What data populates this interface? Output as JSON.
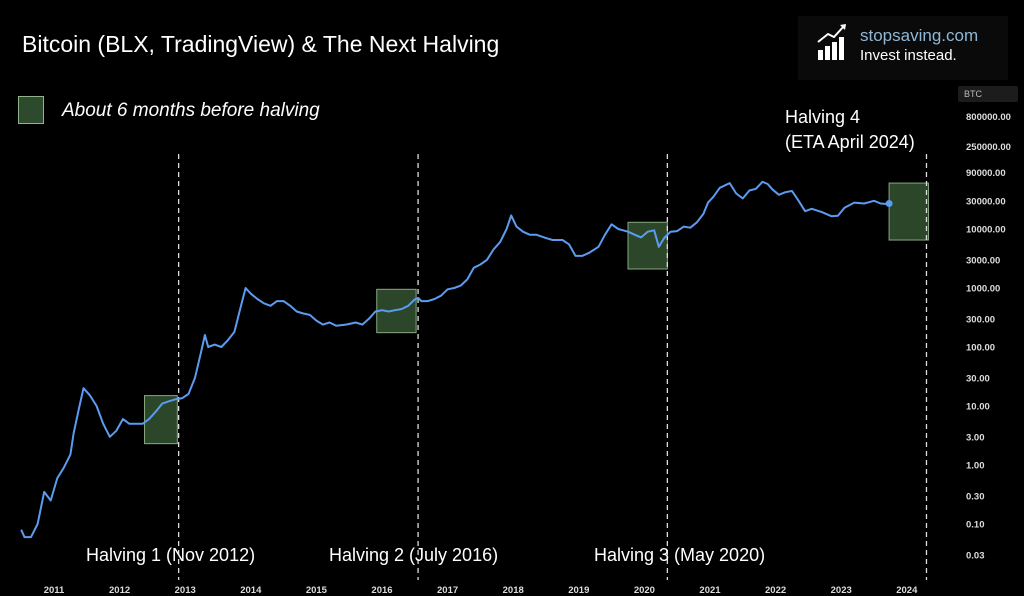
{
  "title": "Bitcoin (BLX, TradingView) & The Next Halving",
  "logo": {
    "brand": "stopsaving.com",
    "tagline": "Invest instead.",
    "icon": "bar-chart-arrow-icon"
  },
  "legend": {
    "label": "About 6 months before halving",
    "color": "#2e4a2c"
  },
  "colors": {
    "line": "#5b9cf0",
    "box_fill": "#2e4a2c",
    "box_stroke": "#8fb38a",
    "halving_line": "#dddddd"
  },
  "chart_data": {
    "type": "line",
    "title": "Bitcoin (BLX, TradingView) & The Next Halving",
    "xlabel": "",
    "ylabel": "BTC",
    "y_scale": "log",
    "y_ticks": [
      "800000.00",
      "250000.00",
      "90000.00",
      "30000.00",
      "10000.00",
      "3000.00",
      "1000.00",
      "300.00",
      "100.00",
      "30.00",
      "10.00",
      "3.00",
      "1.00",
      "0.30",
      "0.10",
      "0.03"
    ],
    "x_ticks": [
      "2011",
      "2012",
      "2013",
      "2014",
      "2015",
      "2016",
      "2017",
      "2018",
      "2019",
      "2020",
      "2021",
      "2022",
      "2023",
      "2024"
    ],
    "series": [
      {
        "name": "BTC",
        "points": [
          [
            2010.5,
            0.08
          ],
          [
            2010.55,
            0.06
          ],
          [
            2010.65,
            0.06
          ],
          [
            2010.75,
            0.1
          ],
          [
            2010.85,
            0.35
          ],
          [
            2010.95,
            0.25
          ],
          [
            2011.05,
            0.6
          ],
          [
            2011.15,
            0.9
          ],
          [
            2011.25,
            1.5
          ],
          [
            2011.3,
            3.5
          ],
          [
            2011.38,
            9
          ],
          [
            2011.45,
            20
          ],
          [
            2011.55,
            15
          ],
          [
            2011.65,
            10
          ],
          [
            2011.75,
            5
          ],
          [
            2011.85,
            3
          ],
          [
            2011.95,
            3.8
          ],
          [
            2012.05,
            6
          ],
          [
            2012.15,
            5
          ],
          [
            2012.25,
            5
          ],
          [
            2012.35,
            5
          ],
          [
            2012.45,
            6
          ],
          [
            2012.55,
            8
          ],
          [
            2012.65,
            11
          ],
          [
            2012.75,
            12
          ],
          [
            2012.85,
            13
          ],
          [
            2012.95,
            13.5
          ],
          [
            2013.05,
            16
          ],
          [
            2013.15,
            30
          ],
          [
            2013.25,
            90
          ],
          [
            2013.3,
            160
          ],
          [
            2013.35,
            100
          ],
          [
            2013.45,
            110
          ],
          [
            2013.55,
            100
          ],
          [
            2013.65,
            130
          ],
          [
            2013.75,
            180
          ],
          [
            2013.85,
            500
          ],
          [
            2013.92,
            1000
          ],
          [
            2014.0,
            800
          ],
          [
            2014.1,
            650
          ],
          [
            2014.2,
            550
          ],
          [
            2014.3,
            500
          ],
          [
            2014.4,
            600
          ],
          [
            2014.5,
            600
          ],
          [
            2014.6,
            500
          ],
          [
            2014.7,
            400
          ],
          [
            2014.8,
            370
          ],
          [
            2014.9,
            350
          ],
          [
            2015.0,
            280
          ],
          [
            2015.1,
            240
          ],
          [
            2015.2,
            260
          ],
          [
            2015.3,
            230
          ],
          [
            2015.45,
            240
          ],
          [
            2015.6,
            260
          ],
          [
            2015.7,
            240
          ],
          [
            2015.8,
            300
          ],
          [
            2015.9,
            400
          ],
          [
            2016.0,
            420
          ],
          [
            2016.1,
            400
          ],
          [
            2016.2,
            420
          ],
          [
            2016.3,
            440
          ],
          [
            2016.4,
            500
          ],
          [
            2016.5,
            640
          ],
          [
            2016.55,
            680
          ],
          [
            2016.6,
            600
          ],
          [
            2016.7,
            600
          ],
          [
            2016.8,
            650
          ],
          [
            2016.9,
            740
          ],
          [
            2017.0,
            950
          ],
          [
            2017.1,
            1000
          ],
          [
            2017.2,
            1100
          ],
          [
            2017.3,
            1400
          ],
          [
            2017.4,
            2200
          ],
          [
            2017.5,
            2500
          ],
          [
            2017.6,
            3000
          ],
          [
            2017.7,
            4500
          ],
          [
            2017.8,
            6000
          ],
          [
            2017.9,
            10000
          ],
          [
            2017.97,
            17000
          ],
          [
            2018.05,
            11000
          ],
          [
            2018.15,
            9000
          ],
          [
            2018.25,
            8000
          ],
          [
            2018.35,
            8000
          ],
          [
            2018.5,
            7000
          ],
          [
            2018.6,
            6500
          ],
          [
            2018.75,
            6500
          ],
          [
            2018.85,
            5500
          ],
          [
            2018.95,
            3500
          ],
          [
            2019.05,
            3500
          ],
          [
            2019.15,
            3900
          ],
          [
            2019.3,
            5000
          ],
          [
            2019.4,
            8000
          ],
          [
            2019.5,
            12000
          ],
          [
            2019.6,
            10000
          ],
          [
            2019.75,
            9000
          ],
          [
            2019.85,
            8000
          ],
          [
            2019.95,
            7200
          ],
          [
            2020.05,
            9000
          ],
          [
            2020.15,
            9500
          ],
          [
            2020.22,
            5000
          ],
          [
            2020.3,
            7000
          ],
          [
            2020.4,
            9000
          ],
          [
            2020.5,
            9200
          ],
          [
            2020.6,
            11000
          ],
          [
            2020.7,
            10500
          ],
          [
            2020.8,
            13000
          ],
          [
            2020.9,
            18000
          ],
          [
            2020.97,
            28000
          ],
          [
            2021.05,
            35000
          ],
          [
            2021.15,
            50000
          ],
          [
            2021.3,
            60000
          ],
          [
            2021.4,
            40000
          ],
          [
            2021.5,
            33000
          ],
          [
            2021.6,
            45000
          ],
          [
            2021.7,
            48000
          ],
          [
            2021.8,
            63000
          ],
          [
            2021.88,
            58000
          ],
          [
            2021.95,
            47000
          ],
          [
            2022.05,
            38000
          ],
          [
            2022.15,
            42000
          ],
          [
            2022.25,
            44000
          ],
          [
            2022.35,
            30000
          ],
          [
            2022.45,
            20000
          ],
          [
            2022.55,
            22000
          ],
          [
            2022.7,
            19500
          ],
          [
            2022.85,
            16500
          ],
          [
            2022.95,
            16800
          ],
          [
            2023.05,
            23000
          ],
          [
            2023.2,
            28000
          ],
          [
            2023.35,
            27000
          ],
          [
            2023.5,
            30000
          ],
          [
            2023.6,
            27000
          ],
          [
            2023.7,
            26500
          ],
          [
            2023.73,
            27000
          ]
        ]
      }
    ],
    "shaded_regions": [
      {
        "x0": 2012.38,
        "x1": 2012.88,
        "y0": 2.3,
        "y1": 15
      },
      {
        "x0": 2015.92,
        "x1": 2016.52,
        "y0": 175,
        "y1": 950
      },
      {
        "x0": 2019.75,
        "x1": 2020.35,
        "y0": 2100,
        "y1": 13000
      },
      {
        "x0": 2023.73,
        "x1": 2024.33,
        "y0": 6500,
        "y1": 60000
      }
    ],
    "halvings": [
      {
        "x": 2012.9,
        "label": "Halving 1 (Nov 2012)"
      },
      {
        "x": 2016.55,
        "label": "Halving 2 (July 2016)"
      },
      {
        "x": 2020.35,
        "label": "Halving 3 (May 2020)"
      },
      {
        "x": 2024.3,
        "label": "Halving 4",
        "label2": "(ETA April 2024)"
      }
    ],
    "current_point": {
      "x": 2023.73,
      "y": 27000
    }
  }
}
